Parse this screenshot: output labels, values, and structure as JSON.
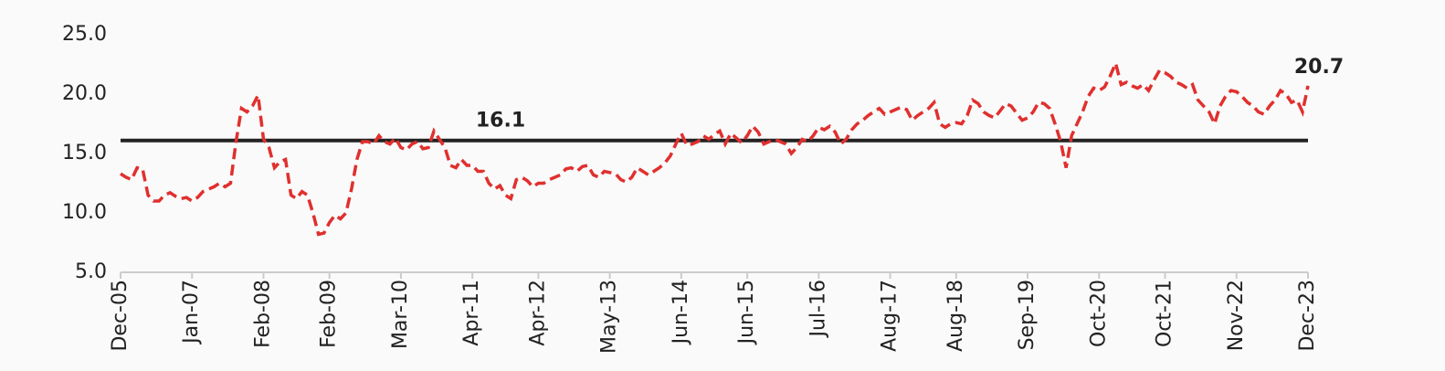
{
  "chart_data": {
    "type": "line",
    "categories": [
      "Dec-05",
      null,
      null,
      null,
      null,
      null,
      null,
      null,
      null,
      null,
      null,
      null,
      null,
      "Jan-07",
      null,
      null,
      null,
      null,
      null,
      null,
      null,
      null,
      null,
      null,
      null,
      null,
      "Feb-08",
      null,
      null,
      null,
      null,
      null,
      null,
      null,
      null,
      null,
      null,
      null,
      "Feb-09",
      null,
      null,
      null,
      null,
      null,
      null,
      null,
      null,
      null,
      null,
      null,
      null,
      "Mar-10",
      null,
      null,
      null,
      null,
      null,
      null,
      null,
      null,
      null,
      null,
      null,
      null,
      "Apr-11",
      null,
      null,
      null,
      null,
      null,
      null,
      null,
      null,
      null,
      null,
      null,
      "Apr-12",
      null,
      null,
      null,
      null,
      null,
      null,
      null,
      null,
      null,
      null,
      null,
      null,
      "May-13",
      null,
      null,
      null,
      null,
      null,
      null,
      null,
      null,
      null,
      null,
      null,
      null,
      "Jun-14",
      null,
      null,
      null,
      null,
      null,
      null,
      null,
      null,
      null,
      null,
      null,
      "Jun-15",
      null,
      null,
      null,
      null,
      null,
      null,
      null,
      null,
      null,
      null,
      null,
      null,
      "Jul-16",
      null,
      null,
      null,
      null,
      null,
      null,
      null,
      null,
      null,
      null,
      null,
      null,
      "Aug-17",
      null,
      null,
      null,
      null,
      null,
      null,
      null,
      null,
      null,
      null,
      null,
      "Aug-18",
      null,
      null,
      null,
      null,
      null,
      null,
      null,
      null,
      null,
      null,
      null,
      null,
      "Sep-19",
      null,
      null,
      null,
      null,
      null,
      null,
      null,
      null,
      null,
      null,
      null,
      null,
      "Oct-20",
      null,
      null,
      null,
      null,
      null,
      null,
      null,
      null,
      null,
      null,
      null,
      "Oct-21",
      null,
      null,
      null,
      null,
      null,
      null,
      null,
      null,
      null,
      null,
      null,
      null,
      "Nov-22",
      null,
      null,
      null,
      null,
      null,
      null,
      null,
      null,
      null,
      null,
      null,
      null,
      "Dec-23"
    ],
    "series": [
      {
        "color": "#e0302e",
        "values": [
          13.3,
          13.0,
          12.8,
          13.8,
          13.7,
          11.5,
          11.0,
          11.0,
          11.5,
          11.7,
          11.4,
          11.2,
          11.3,
          11.0,
          11.3,
          11.8,
          12.0,
          12.2,
          12.5,
          12.2,
          12.5,
          16.0,
          18.8,
          18.5,
          19.0,
          19.9,
          16.2,
          15.5,
          13.8,
          14.3,
          14.5,
          11.5,
          11.2,
          11.8,
          11.5,
          10.0,
          8.2,
          8.3,
          9.2,
          9.8,
          9.5,
          10.0,
          12.0,
          14.5,
          16.0,
          16.0,
          15.8,
          16.5,
          16.0,
          15.8,
          16.3,
          15.5,
          15.3,
          15.8,
          16.0,
          15.4,
          15.5,
          16.9,
          16.2,
          15.5,
          14.0,
          13.8,
          14.5,
          14.0,
          14.0,
          13.5,
          13.5,
          12.5,
          12.0,
          12.3,
          11.5,
          11.2,
          12.8,
          13.0,
          12.7,
          12.2,
          12.5,
          12.5,
          12.8,
          13.0,
          13.2,
          13.7,
          13.8,
          13.5,
          13.9,
          14.0,
          13.2,
          13.0,
          13.5,
          13.4,
          13.3,
          12.8,
          12.6,
          13.0,
          13.8,
          13.5,
          13.2,
          13.5,
          13.8,
          14.2,
          14.8,
          15.8,
          16.7,
          15.7,
          15.8,
          16.0,
          16.5,
          16.2,
          16.6,
          16.9,
          15.8,
          16.7,
          16.3,
          15.9,
          16.5,
          17.3,
          16.8,
          15.8,
          16.0,
          16.2,
          16.0,
          15.8,
          15.0,
          15.5,
          16.2,
          16.0,
          16.5,
          17.2,
          17.0,
          17.3,
          16.8,
          15.8,
          16.2,
          17.0,
          17.5,
          17.8,
          18.2,
          18.5,
          18.8,
          18.3,
          18.5,
          18.7,
          18.9,
          18.7,
          17.8,
          18.2,
          18.5,
          18.8,
          19.3,
          17.5,
          17.2,
          17.5,
          17.6,
          17.5,
          18.2,
          19.5,
          19.2,
          18.5,
          18.2,
          18.0,
          18.6,
          19.2,
          19.0,
          18.4,
          17.8,
          18.0,
          18.5,
          19.3,
          19.2,
          18.8,
          17.5,
          16.0,
          13.8,
          16.5,
          17.5,
          18.5,
          19.8,
          20.5,
          20.3,
          20.6,
          21.5,
          22.6,
          20.8,
          21.0,
          20.7,
          20.5,
          20.8,
          20.3,
          21.2,
          22.0,
          21.8,
          21.5,
          21.0,
          20.8,
          20.5,
          20.8,
          19.5,
          19.0,
          18.5,
          17.5,
          19.0,
          19.8,
          20.3,
          20.2,
          19.8,
          19.3,
          19.0,
          18.5,
          18.3,
          19.0,
          19.5,
          20.3,
          20.0,
          19.3,
          19.5,
          18.5,
          20.7
        ]
      }
    ],
    "average": 16.1,
    "average_color": "#222222",
    "ylim": [
      5,
      25
    ],
    "yticks": [
      {
        "value": 5,
        "label": "5.0"
      },
      {
        "value": 10,
        "label": "10.0"
      },
      {
        "value": 15,
        "label": "15.0"
      },
      {
        "value": 20,
        "label": "20.0"
      },
      {
        "value": 25,
        "label": "25.0"
      }
    ]
  }
}
